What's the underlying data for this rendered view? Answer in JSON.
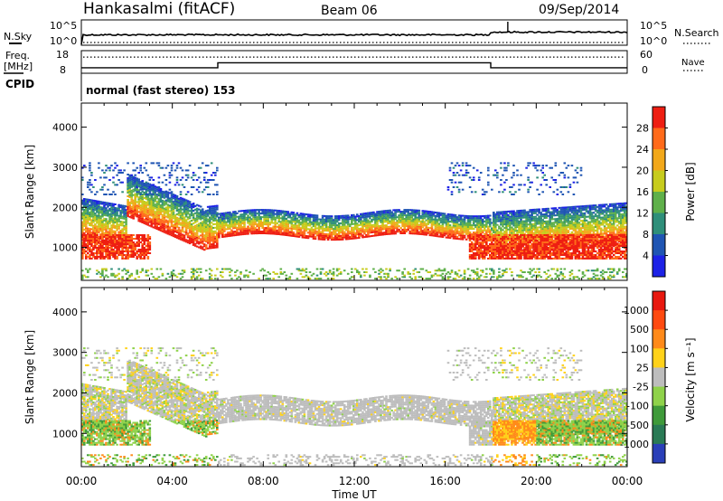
{
  "header": {
    "station": "Hankasalmi (fitACF)",
    "beam": "Beam 06",
    "date": "09/Sep/2014"
  },
  "chart_data": [
    {
      "type": "line",
      "panel": "noise",
      "left_label": "N.Sky",
      "right_label": "N.Search",
      "ticks_left": [
        "10^5",
        "10^0"
      ],
      "ticks_right": [
        "10^5",
        "10^0"
      ],
      "note": ""
    },
    {
      "type": "line",
      "panel": "frequency",
      "left_label_lines": [
        "Freq.",
        "[MHz]"
      ],
      "right_label": "Nave",
      "ticks_left": [
        "18",
        "8"
      ],
      "ticks_right": [
        "60",
        "0"
      ],
      "ylim_left": [
        8,
        18
      ],
      "ylim_right": [
        0,
        60
      ],
      "freq_steps": [
        {
          "start": 0.0,
          "end": 6.0,
          "value": 10.2
        },
        {
          "start": 6.0,
          "end": 18.0,
          "value": 12.6
        },
        {
          "start": 18.0,
          "end": 24.0,
          "value": 10.2
        }
      ],
      "nave_value": 44
    },
    {
      "type": "table",
      "panel": "cpid",
      "left_label": "CPID",
      "text": "normal (fast stereo) 153"
    },
    {
      "type": "heatmap",
      "panel": "power",
      "xlabel": "",
      "ylabel": "Slant Range [km]",
      "ylim": [
        180,
        4600
      ],
      "xlim": [
        0,
        24
      ],
      "y_ticks": [
        "1000",
        "2000",
        "3000",
        "4000"
      ],
      "colorbar": {
        "label": "Power [dB]",
        "ticks": [
          "4",
          "8",
          "12",
          "16",
          "20",
          "24",
          "28"
        ],
        "colors": [
          "#1d22e6",
          "#1f55b3",
          "#2f8f7a",
          "#5fb04a",
          "#c7cc1d",
          "#f2a81a",
          "#ff6a1a",
          "#ee1e12"
        ]
      }
    },
    {
      "type": "heatmap",
      "panel": "velocity",
      "xlabel": "Time UT",
      "ylabel": "Slant Range [km]",
      "ylim": [
        180,
        4600
      ],
      "xlim": [
        0,
        24
      ],
      "y_ticks": [
        "1000",
        "2000",
        "3000",
        "4000"
      ],
      "x_ticks": [
        "00:00",
        "04:00",
        "08:00",
        "12:00",
        "16:00",
        "20:00",
        "00:00"
      ],
      "colorbar": {
        "label": "Velocity [m s⁻¹]",
        "ticks": [
          "1000",
          "500",
          "100",
          "25",
          "-25",
          "-100",
          "-500",
          "-1000"
        ],
        "colors": [
          "#2a3fb8",
          "#2a7a55",
          "#3f9a3a",
          "#8fd24a",
          "#bdbdbd",
          "#ffd21a",
          "#ff8a1a",
          "#ff4a10",
          "#e8180f"
        ]
      }
    }
  ]
}
